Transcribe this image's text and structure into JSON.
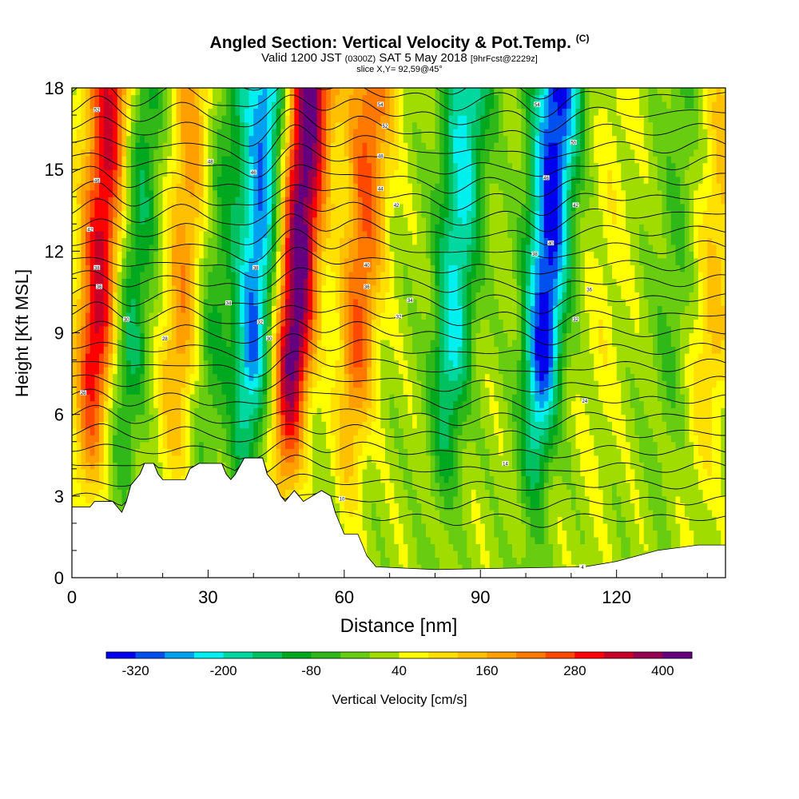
{
  "header": {
    "title": "Angled Section: Vertical Velocity & Pot.Temp.",
    "title_suffix": "(C)",
    "valid_prefix": "Valid 1200 JST",
    "valid_utc": "(0300Z)",
    "valid_date": "SAT 5 May 2018",
    "forecast_tag": "[9hrFcst@2229z]",
    "slice": "slice X,Y= 92,59@45°"
  },
  "chart_data": {
    "type": "heatmap",
    "xlabel": "Distance [nm]",
    "ylabel": "Height [Kft MSL]",
    "xlim": [
      0,
      144
    ],
    "ylim": [
      0,
      18
    ],
    "x_ticks": [
      0,
      30,
      60,
      90,
      120
    ],
    "y_ticks": [
      0,
      3,
      6,
      9,
      12,
      15,
      18
    ],
    "colorbar": {
      "label": "Vertical Velocity [cm/s]",
      "tick_labels": [
        -320,
        -200,
        -80,
        40,
        160,
        280,
        400
      ],
      "levels": [
        -360,
        -320,
        -280,
        -240,
        -200,
        -160,
        -120,
        -80,
        -40,
        0,
        40,
        80,
        120,
        160,
        200,
        240,
        280,
        320,
        360,
        400,
        440
      ],
      "colors": [
        "#0000ee",
        "#0050f0",
        "#00a0f0",
        "#00f0f0",
        "#00d8a0",
        "#00c060",
        "#00a820",
        "#30b818",
        "#68cc10",
        "#a0dc00",
        "#ffff00",
        "#ffe000",
        "#ffc000",
        "#ffa000",
        "#ff7800",
        "#ff4800",
        "#ff0000",
        "#c80028",
        "#960050",
        "#640080"
      ]
    },
    "velocity_cores": [
      {
        "x": 5.5,
        "peak": 320
      },
      {
        "x": 13,
        "peak": -150
      },
      {
        "x": 24,
        "peak": 170
      },
      {
        "x": 31,
        "peak": -100
      },
      {
        "x": 40,
        "peak": -300
      },
      {
        "x": 49,
        "peak": 420
      },
      {
        "x": 63,
        "peak": 220
      },
      {
        "x": 84,
        "peak": -230
      },
      {
        "x": 104,
        "peak": -360
      },
      {
        "x": 117,
        "peak": 40
      },
      {
        "x": 132,
        "peak": -60
      },
      {
        "x": 141,
        "peak": 110
      }
    ],
    "terrain": [
      [
        0,
        2.6
      ],
      [
        4,
        2.6
      ],
      [
        5,
        2.8
      ],
      [
        9,
        2.8
      ],
      [
        10,
        2.6
      ],
      [
        11,
        2.4
      ],
      [
        12,
        2.8
      ],
      [
        13,
        3.4
      ],
      [
        15,
        3.8
      ],
      [
        16,
        4.2
      ],
      [
        18,
        4.2
      ],
      [
        19,
        3.8
      ],
      [
        20,
        3.6
      ],
      [
        25,
        3.6
      ],
      [
        26,
        4.0
      ],
      [
        28,
        4.2
      ],
      [
        33,
        4.2
      ],
      [
        34,
        3.8
      ],
      [
        35,
        3.6
      ],
      [
        36,
        3.8
      ],
      [
        38,
        4.4
      ],
      [
        42,
        4.4
      ],
      [
        43,
        3.8
      ],
      [
        45,
        3.4
      ],
      [
        46,
        3.0
      ],
      [
        47,
        2.8
      ],
      [
        48,
        3.0
      ],
      [
        49,
        3.2
      ],
      [
        50,
        3.0
      ],
      [
        51,
        2.8
      ],
      [
        53,
        3.0
      ],
      [
        55,
        3.2
      ],
      [
        57,
        3.0
      ],
      [
        58,
        2.4
      ],
      [
        60,
        1.6
      ],
      [
        63,
        1.6
      ],
      [
        64,
        1.2
      ],
      [
        65,
        0.8
      ],
      [
        67,
        0.4
      ],
      [
        80,
        0.3
      ],
      [
        113,
        0.4
      ],
      [
        120,
        0.6
      ],
      [
        129,
        1.0
      ],
      [
        138,
        1.2
      ],
      [
        144,
        1.2
      ]
    ],
    "theta_contour_labels": [
      {
        "x": 5.5,
        "y": 17.2,
        "text": "52"
      },
      {
        "x": 5.5,
        "y": 14.6,
        "text": "46"
      },
      {
        "x": 4,
        "y": 12.8,
        "text": "42"
      },
      {
        "x": 5.5,
        "y": 11.4,
        "text": "38"
      },
      {
        "x": 6,
        "y": 10.7,
        "text": "36"
      },
      {
        "x": 2.5,
        "y": 6.8,
        "text": "26"
      },
      {
        "x": 12,
        "y": 9.5,
        "text": "30"
      },
      {
        "x": 20.5,
        "y": 8.8,
        "text": "28"
      },
      {
        "x": 30.5,
        "y": 15.3,
        "text": "48"
      },
      {
        "x": 34.5,
        "y": 10.1,
        "text": "34"
      },
      {
        "x": 40,
        "y": 14.9,
        "text": "46"
      },
      {
        "x": 40.5,
        "y": 11.4,
        "text": "38"
      },
      {
        "x": 41.5,
        "y": 9.4,
        "text": "32"
      },
      {
        "x": 43.5,
        "y": 8.8,
        "text": "30"
      },
      {
        "x": 59.5,
        "y": 2.9,
        "text": "10"
      },
      {
        "x": 65,
        "y": 11.5,
        "text": "40"
      },
      {
        "x": 65,
        "y": 10.7,
        "text": "36"
      },
      {
        "x": 68,
        "y": 17.4,
        "text": "54"
      },
      {
        "x": 69,
        "y": 16.6,
        "text": "52"
      },
      {
        "x": 68,
        "y": 15.5,
        "text": "48"
      },
      {
        "x": 68,
        "y": 14.3,
        "text": "44"
      },
      {
        "x": 71.5,
        "y": 13.7,
        "text": "42"
      },
      {
        "x": 72,
        "y": 9.6,
        "text": "32"
      },
      {
        "x": 74.5,
        "y": 10.2,
        "text": "34"
      },
      {
        "x": 95.5,
        "y": 4.2,
        "text": "14"
      },
      {
        "x": 102.5,
        "y": 17.4,
        "text": "54"
      },
      {
        "x": 104.5,
        "y": 14.7,
        "text": "46"
      },
      {
        "x": 105.5,
        "y": 12.3,
        "text": "40"
      },
      {
        "x": 102,
        "y": 11.9,
        "text": "38"
      },
      {
        "x": 110.5,
        "y": 16.0,
        "text": "50"
      },
      {
        "x": 111,
        "y": 13.7,
        "text": "42"
      },
      {
        "x": 111,
        "y": 9.5,
        "text": "32"
      },
      {
        "x": 114,
        "y": 10.6,
        "text": "36"
      },
      {
        "x": 113,
        "y": 6.5,
        "text": "24"
      },
      {
        "x": 112.5,
        "y": 0.4,
        "text": "4"
      }
    ]
  }
}
